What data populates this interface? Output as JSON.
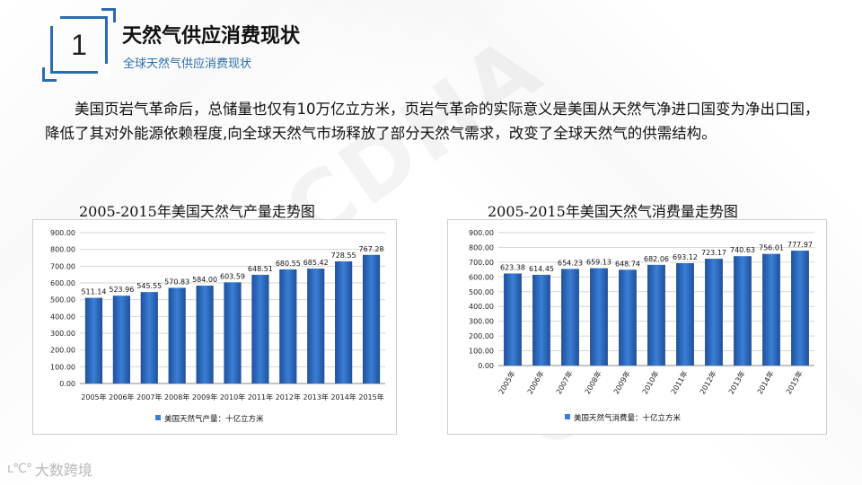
{
  "header": {
    "section_number": "1",
    "title": "天然气供应消费现状",
    "subtitle": "全球天然气供应消费现状"
  },
  "paragraph": "美国页岩气革命后，总储量也仅有10万亿立方米，页岩气革命的实际意义是美国从天然气净进口国变为净出口国，降低了其对外能源依赖程度,向全球天然气市场释放了部分天然气需求，改变了全球天然气的供需结构。",
  "watermark": "CDHA",
  "footer": {
    "logo_glyph": "ʟ℃°",
    "brand": "大数跨境"
  },
  "colors": {
    "accent": "#2b6cb0",
    "bar_top": "#3a7fd6",
    "bar_bottom": "#1f4f9a"
  },
  "chart_data": [
    {
      "type": "bar",
      "title": "2005-2015年美国天然气产量走势图",
      "categories": [
        "2005年",
        "2006年",
        "2007年",
        "2008年",
        "2009年",
        "2010年",
        "2011年",
        "2012年",
        "2013年",
        "2014年",
        "2015年"
      ],
      "series": [
        {
          "name": "美国天然气产量：十亿立方米",
          "values": [
            511.14,
            523.96,
            545.55,
            570.83,
            584.0,
            603.59,
            648.51,
            680.55,
            685.42,
            728.55,
            767.28
          ],
          "labels": [
            "511.14",
            "523.96",
            "545.55",
            "570.83",
            "584.00",
            "603.59",
            "648.51",
            "680.55",
            "685.42",
            "728.55",
            "767.28"
          ]
        }
      ],
      "ylim": [
        0,
        900
      ],
      "yticks": [
        "0.00",
        "100.00",
        "200.00",
        "300.00",
        "400.00",
        "500.00",
        "600.00",
        "700.00",
        "800.00",
        "900.00"
      ],
      "grid": true,
      "legend": "bottom",
      "rotated_xlabels": false
    },
    {
      "type": "bar",
      "title": "2005-2015年美国天然气消费量走势图",
      "categories": [
        "2005年",
        "2006年",
        "2007年",
        "2008年",
        "2009年",
        "2010年",
        "2011年",
        "2012年",
        "2013年",
        "2014年",
        "2015年"
      ],
      "series": [
        {
          "name": "美国天然气消费量：十亿立方米",
          "values": [
            623.38,
            614.45,
            654.23,
            659.13,
            648.74,
            682.06,
            693.12,
            723.17,
            740.63,
            756.01,
            777.97
          ],
          "labels": [
            "623.38",
            "614.45",
            "654.23",
            "659.13",
            "648.74",
            "682.06",
            "693.12",
            "723.17",
            "740.63",
            "756.01",
            "777.97"
          ]
        }
      ],
      "ylim": [
        0,
        900
      ],
      "yticks": [
        "0.00",
        "100.00",
        "200.00",
        "300.00",
        "400.00",
        "500.00",
        "600.00",
        "700.00",
        "800.00",
        "900.00"
      ],
      "grid": true,
      "legend": "bottom",
      "rotated_xlabels": true
    }
  ]
}
